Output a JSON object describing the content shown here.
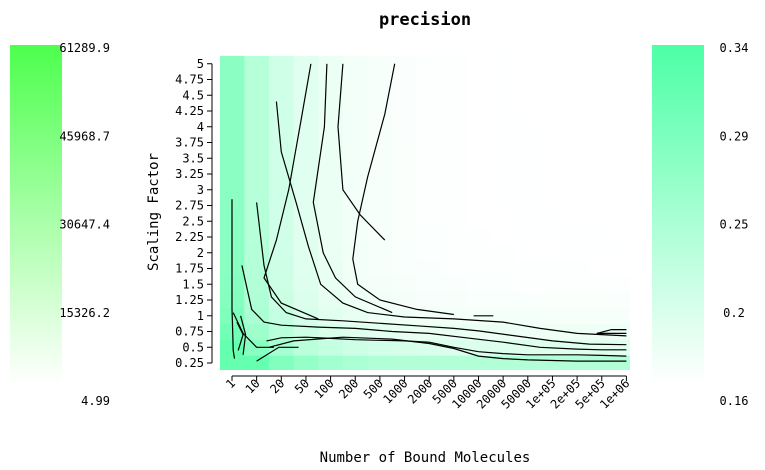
{
  "chart_data": {
    "type": "heatmap",
    "title": "precision",
    "xlabel": "Number of Bound Molecules",
    "ylabel": "Scaling Factor",
    "x_categories": [
      "1",
      "10",
      "20",
      "50",
      "100",
      "200",
      "500",
      "1000",
      "2000",
      "5000",
      "10000",
      "20000",
      "50000",
      "1e+05",
      "2e+05",
      "5e+05",
      "1e+06"
    ],
    "y_categories": [
      "0.25",
      "0.5",
      "0.75",
      "1",
      "1.25",
      "1.5",
      "1.75",
      "2",
      "2.25",
      "2.5",
      "2.75",
      "3",
      "3.25",
      "3.5",
      "3.75",
      "4",
      "4.25",
      "4.5",
      "4.75",
      "5"
    ],
    "left_colorbar": {
      "tick_labels": [
        "61289.9",
        "45968.7",
        "30647.4",
        "15326.2",
        "4.99"
      ],
      "range": [
        4.99,
        61289.9
      ],
      "low_color": "#ffffff",
      "high_color": "#4dff4d"
    },
    "right_colorbar": {
      "tick_labels": [
        "0.34",
        "0.29",
        "0.25",
        "0.2",
        "0.16"
      ],
      "range": [
        0.16,
        0.34
      ],
      "low_color": "#ffffff",
      "high_color": "#4dffa6"
    },
    "contours": [
      [
        [
          0,
          2.85
        ],
        [
          0,
          1.7
        ],
        [
          0,
          1.1
        ],
        [
          0.03,
          0.75
        ],
        [
          0.05,
          0.45
        ],
        [
          0.1,
          0.32
        ]
      ],
      [
        [
          0.05,
          1.05
        ],
        [
          0.45,
          0.72
        ],
        [
          1.0,
          0.5
        ],
        [
          1.7,
          0.5
        ]
      ],
      [
        [
          1.0,
          0.28
        ],
        [
          1.9,
          0.5
        ],
        [
          2.7,
          0.5
        ]
      ],
      [
        [
          0.25,
          0.45
        ],
        [
          0.45,
          0.7
        ],
        [
          0.2,
          0.9
        ]
      ],
      [
        [
          0.45,
          0.38
        ],
        [
          0.55,
          0.7
        ],
        [
          0.35,
          1.0
        ]
      ],
      [
        [
          1.4,
          0.6
        ],
        [
          2,
          0.65
        ],
        [
          3,
          0.66
        ],
        [
          4,
          0.64
        ],
        [
          5,
          0.62
        ],
        [
          6,
          0.61
        ],
        [
          7,
          0.6
        ],
        [
          8,
          0.58
        ],
        [
          9,
          0.5
        ],
        [
          10,
          0.43
        ],
        [
          11,
          0.4
        ],
        [
          12,
          0.38
        ],
        [
          13,
          0.38
        ],
        [
          14,
          0.38
        ],
        [
          15,
          0.37
        ],
        [
          16,
          0.36
        ]
      ],
      [
        [
          1.5,
          0.5
        ],
        [
          2.5,
          0.6
        ],
        [
          4.5,
          0.66
        ],
        [
          6.5,
          0.63
        ],
        [
          8,
          0.56
        ],
        [
          9,
          0.48
        ],
        [
          10,
          0.36
        ],
        [
          11,
          0.32
        ],
        [
          12,
          0.3
        ],
        [
          13,
          0.29
        ],
        [
          14,
          0.28
        ],
        [
          16,
          0.28
        ]
      ],
      [
        [
          0.4,
          1.8
        ],
        [
          0.8,
          1.1
        ],
        [
          1.3,
          0.9
        ],
        [
          2,
          0.85
        ],
        [
          3.5,
          0.82
        ],
        [
          5,
          0.8
        ],
        [
          6.5,
          0.75
        ],
        [
          8,
          0.72
        ],
        [
          9.5,
          0.65
        ],
        [
          11,
          0.58
        ],
        [
          12.5,
          0.5
        ],
        [
          14,
          0.47
        ],
        [
          15,
          0.46
        ],
        [
          16,
          0.46
        ]
      ],
      [
        [
          1.0,
          2.8
        ],
        [
          1.3,
          1.8
        ],
        [
          1.6,
          1.3
        ],
        [
          2.2,
          1.05
        ],
        [
          3,
          0.95
        ],
        [
          4.5,
          0.92
        ],
        [
          6,
          0.88
        ],
        [
          7.5,
          0.84
        ],
        [
          9,
          0.8
        ],
        [
          10,
          0.76
        ],
        [
          11.5,
          0.68
        ],
        [
          13,
          0.6
        ],
        [
          14.5,
          0.55
        ],
        [
          16,
          0.54
        ]
      ],
      [
        [
          1.8,
          4.4
        ],
        [
          2,
          3.6
        ],
        [
          2.6,
          2.8
        ],
        [
          3.1,
          2.1
        ],
        [
          3.6,
          1.5
        ],
        [
          4.5,
          1.2
        ],
        [
          5.5,
          1.05
        ],
        [
          7,
          0.98
        ],
        [
          9,
          0.95
        ],
        [
          11,
          0.9
        ],
        [
          12.5,
          0.8
        ],
        [
          14,
          0.72
        ],
        [
          16,
          0.68
        ]
      ],
      [
        [
          3.2,
          5.0
        ],
        [
          2.8,
          4.1
        ],
        [
          2.3,
          3.0
        ],
        [
          1.8,
          2.2
        ],
        [
          1.3,
          1.6
        ],
        [
          2,
          1.2
        ],
        [
          3.5,
          0.95
        ]
      ],
      [
        [
          3.85,
          5.0
        ],
        [
          3.75,
          4.0
        ],
        [
          3.3,
          2.8
        ],
        [
          3.7,
          2.0
        ],
        [
          4.2,
          1.6
        ],
        [
          5,
          1.3
        ],
        [
          6.5,
          1.05
        ]
      ],
      [
        [
          4.5,
          5.0
        ],
        [
          4.3,
          4.0
        ],
        [
          4.5,
          3.0
        ],
        [
          5.2,
          2.6
        ],
        [
          6.2,
          2.2
        ]
      ],
      [
        [
          6.6,
          5.0
        ],
        [
          6.2,
          4.2
        ],
        [
          5.5,
          3.2
        ],
        [
          5.1,
          2.5
        ],
        [
          4.9,
          1.9
        ],
        [
          5.1,
          1.5
        ],
        [
          6,
          1.25
        ],
        [
          7.5,
          1.1
        ],
        [
          9,
          1.02
        ]
      ],
      [
        [
          9.8,
          1.0
        ],
        [
          10.6,
          1.0
        ]
      ],
      [
        [
          14.8,
          0.72
        ],
        [
          15.4,
          0.78
        ],
        [
          16,
          0.78
        ]
      ],
      [
        [
          14.8,
          0.72
        ],
        [
          16,
          0.72
        ]
      ]
    ]
  }
}
